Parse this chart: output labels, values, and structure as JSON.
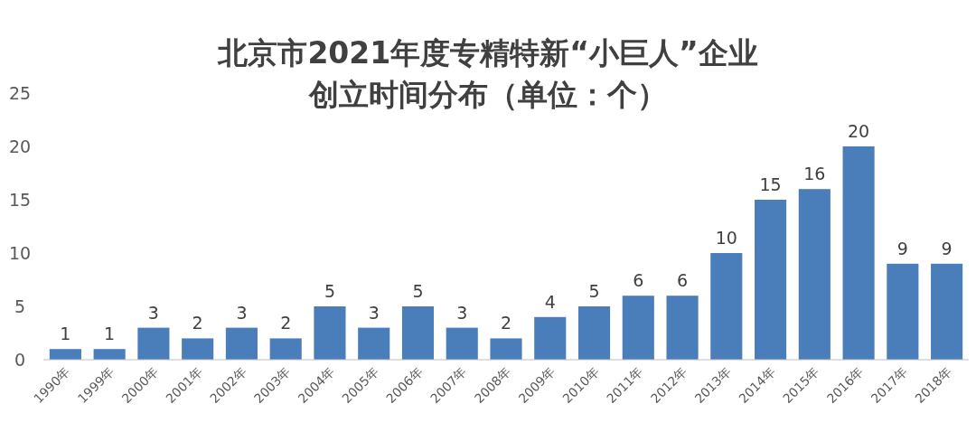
{
  "chart_data": {
    "type": "bar",
    "title": "北京市2021年度专精特新“小巨人”企业",
    "subtitle": "创立时间分布（单位：个）",
    "categories": [
      "1990年",
      "1999年",
      "2000年",
      "2001年",
      "2002年",
      "2003年",
      "2004年",
      "2005年",
      "2006年",
      "2007年",
      "2008年",
      "2009年",
      "2010年",
      "2011年",
      "2012年",
      "2013年",
      "2014年",
      "2015年",
      "2016年",
      "2017年",
      "2018年"
    ],
    "values": [
      1,
      1,
      3,
      2,
      3,
      2,
      5,
      3,
      5,
      3,
      2,
      4,
      5,
      6,
      6,
      10,
      15,
      16,
      20,
      9,
      9
    ],
    "color": "#4a7ebb",
    "ylim": [
      0,
      25
    ],
    "yticks": [
      0,
      5,
      10,
      15,
      20,
      25
    ],
    "data_labels": true
  }
}
